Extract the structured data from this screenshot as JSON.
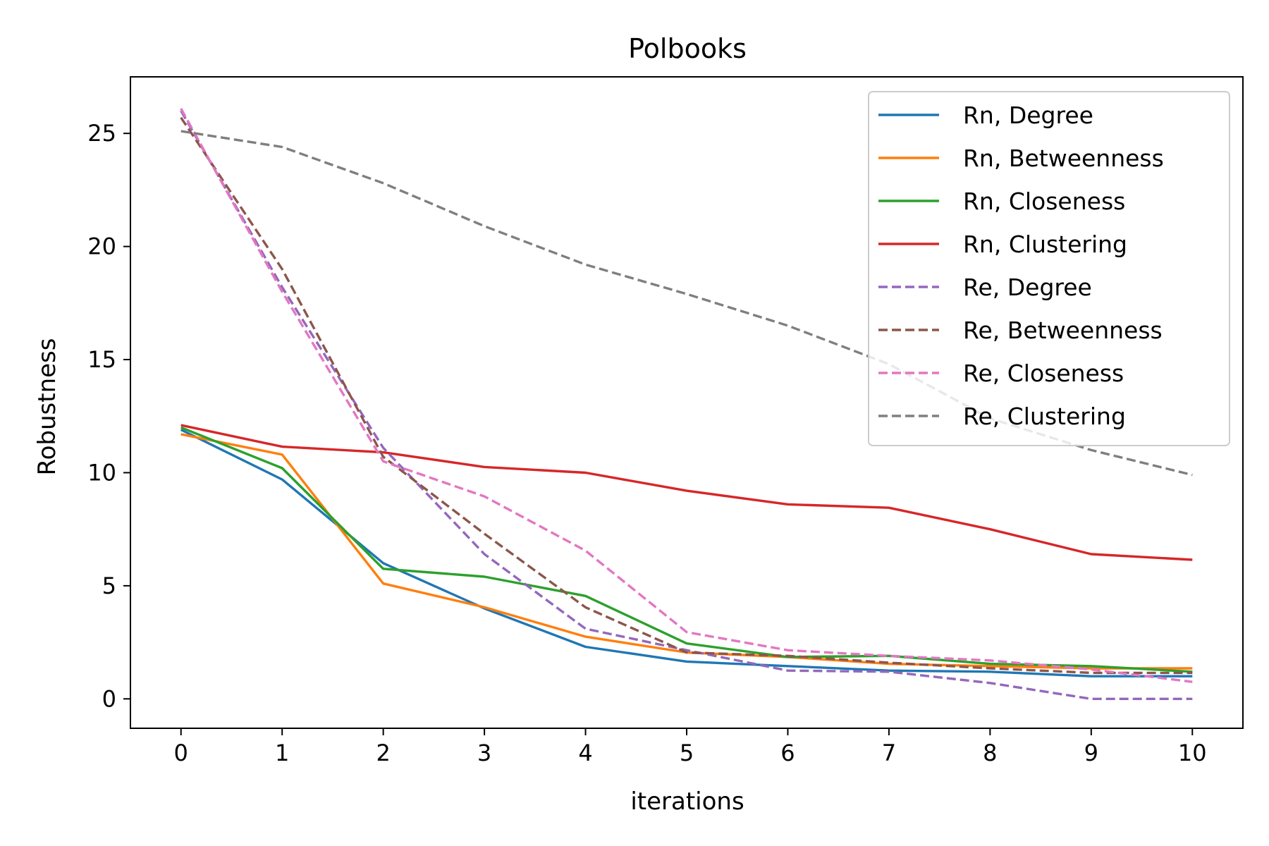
{
  "chart_data": {
    "type": "line",
    "title": "Polbooks",
    "xlabel": "iterations",
    "ylabel": "Robustness",
    "x": [
      0,
      1,
      2,
      3,
      4,
      5,
      6,
      7,
      8,
      9,
      10
    ],
    "xticks": [
      0,
      1,
      2,
      3,
      4,
      5,
      6,
      7,
      8,
      9,
      10
    ],
    "yticks": [
      0,
      5,
      10,
      15,
      20,
      25
    ],
    "xlim": [
      -0.5,
      10.5
    ],
    "ylim": [
      -1.3,
      27.5
    ],
    "grid": false,
    "legend_position": "top-right",
    "series": [
      {
        "name": "Rn, Degree",
        "color": "#1f77b4",
        "dash": "solid",
        "values": [
          11.9,
          9.7,
          6.0,
          4.0,
          2.3,
          1.65,
          1.45,
          1.25,
          1.2,
          1.0,
          1.0
        ]
      },
      {
        "name": "Rn, Betweenness",
        "color": "#ff7f0e",
        "dash": "solid",
        "values": [
          11.7,
          10.8,
          5.1,
          4.05,
          2.75,
          2.05,
          1.85,
          1.55,
          1.45,
          1.35,
          1.35
        ]
      },
      {
        "name": "Rn, Closeness",
        "color": "#2ca02c",
        "dash": "solid",
        "values": [
          12.0,
          10.2,
          5.75,
          5.4,
          4.55,
          2.45,
          1.85,
          1.9,
          1.55,
          1.45,
          1.2
        ]
      },
      {
        "name": "Rn, Clustering",
        "color": "#d62728",
        "dash": "solid",
        "values": [
          12.1,
          11.15,
          10.9,
          10.25,
          10.0,
          9.2,
          8.6,
          8.45,
          7.5,
          6.4,
          6.15
        ]
      },
      {
        "name": "Re, Degree",
        "color": "#9467bd",
        "dash": "dashed",
        "values": [
          26.0,
          18.2,
          11.1,
          6.4,
          3.1,
          2.15,
          1.25,
          1.2,
          0.7,
          0.0,
          0.0
        ]
      },
      {
        "name": "Re, Betweenness",
        "color": "#8c564b",
        "dash": "dashed",
        "values": [
          25.7,
          19.0,
          10.7,
          7.3,
          4.05,
          2.05,
          1.9,
          1.6,
          1.35,
          1.15,
          1.15
        ]
      },
      {
        "name": "Re, Closeness",
        "color": "#e377c2",
        "dash": "dashed",
        "values": [
          26.1,
          18.0,
          10.5,
          8.95,
          6.55,
          2.95,
          2.15,
          1.9,
          1.7,
          1.3,
          0.75
        ]
      },
      {
        "name": "Re, Clustering",
        "color": "#7f7f7f",
        "dash": "dashed",
        "values": [
          25.1,
          24.4,
          22.8,
          20.9,
          19.2,
          17.9,
          16.5,
          14.8,
          12.4,
          11.0,
          9.9
        ]
      }
    ]
  }
}
